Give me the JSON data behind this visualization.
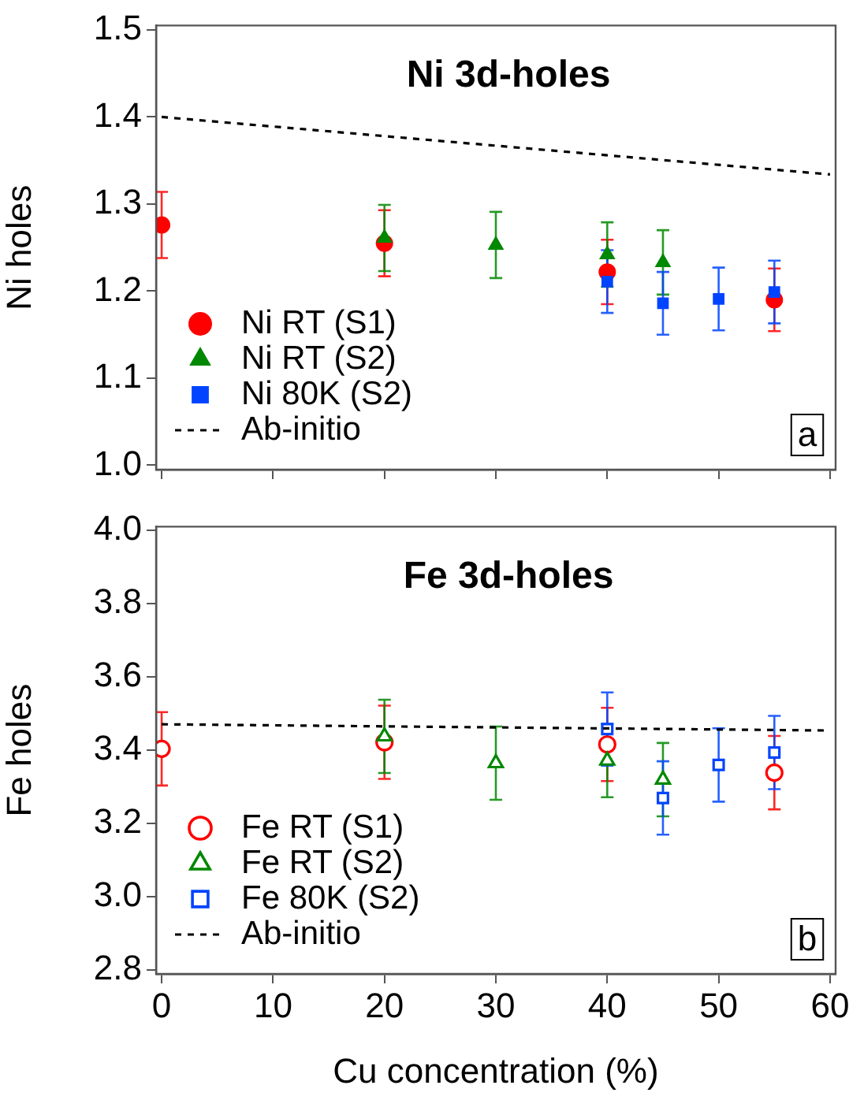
{
  "chart_data": [
    {
      "type": "scatter",
      "title": "Ni 3d-holes",
      "ylabel": "Ni holes",
      "xlim": [
        -0.5,
        60.5
      ],
      "xticks": [
        {
          "value": 0,
          "label": null
        },
        {
          "value": 10,
          "label": null
        },
        {
          "value": 20,
          "label": null
        },
        {
          "value": 30,
          "label": null
        },
        {
          "value": 40,
          "label": null
        },
        {
          "value": 50,
          "label": null
        },
        {
          "value": 60,
          "label": null
        }
      ],
      "ylim": [
        0.995,
        1.505
      ],
      "yticks": [
        {
          "value": 1,
          "label": "1.0"
        },
        1.1,
        1.2,
        1.3,
        1.4,
        1.5
      ],
      "tick_labels": "y",
      "grid": false,
      "legend": "bottom left",
      "annotations": [
        "a"
      ],
      "series": [
        {
          "name": "Ni RT (S1)",
          "type": "scatter",
          "marker": "circle",
          "color": "#ff0000",
          "x": [
            0,
            20,
            40,
            55
          ],
          "values": [
            1.276,
            1.255,
            1.222,
            1.19
          ],
          "errors": [
            0.038,
            0.038,
            0.037,
            0.036
          ]
        },
        {
          "name": "Ni RT (S2)",
          "type": "scatter",
          "marker": "triangle",
          "color": "#008800",
          "x": [
            20,
            30,
            40,
            45
          ],
          "values": [
            1.261,
            1.253,
            1.242,
            1.233
          ],
          "errors": [
            0.038,
            0.038,
            0.037,
            0.037
          ]
        },
        {
          "name": "Ni 80K (S2)",
          "type": "scatter",
          "marker": "square",
          "color": "#0044ff",
          "x": [
            40,
            45,
            50,
            55
          ],
          "values": [
            1.211,
            1.186,
            1.191,
            1.199
          ],
          "errors": [
            0.036,
            0.036,
            0.036,
            0.036
          ]
        },
        {
          "name": "Ab-initio",
          "type": "line",
          "marker": "none",
          "line_style": "dashed",
          "color": "#000000",
          "x": [
            0,
            60
          ],
          "values": [
            1.4,
            1.334
          ]
        }
      ]
    },
    {
      "type": "scatter",
      "title": "Fe 3d-holes",
      "xlabel": "Cu concentration (%)",
      "ylabel": "Fe holes",
      "xlim": [
        -0.5,
        60.5
      ],
      "xticks": [
        0,
        10,
        20,
        30,
        40,
        50,
        60
      ],
      "ylim": [
        2.79,
        4.01
      ],
      "yticks": [
        2.8,
        {
          "value": 3,
          "label": "3.0"
        },
        3.2,
        3.4,
        3.6,
        3.8,
        {
          "value": 4,
          "label": "4.0"
        }
      ],
      "grid": false,
      "legend": "bottom left",
      "annotations": [
        "b"
      ],
      "series": [
        {
          "name": "Fe RT (S1)",
          "type": "scatter",
          "marker": "circle",
          "color": "#ff0000",
          "x": [
            0,
            20,
            40,
            55
          ],
          "values": [
            3.404,
            3.422,
            3.416,
            3.339
          ],
          "errors": [
            0.1,
            0.1,
            0.1,
            0.1
          ]
        },
        {
          "name": "Fe RT (S2)",
          "type": "scatter",
          "marker": "triangle",
          "color": "#008800",
          "x": [
            20,
            30,
            40,
            45
          ],
          "values": [
            3.438,
            3.365,
            3.372,
            3.32
          ],
          "errors": [
            0.1,
            0.1,
            0.1,
            0.1
          ]
        },
        {
          "name": "Fe 80K (S2)",
          "type": "scatter",
          "marker": "square",
          "color": "#0044ff",
          "x": [
            40,
            45,
            50,
            55
          ],
          "values": [
            3.458,
            3.27,
            3.36,
            3.394
          ],
          "errors": [
            0.1,
            0.1,
            0.1,
            0.1
          ]
        },
        {
          "name": "Ab-initio",
          "type": "line",
          "marker": "none",
          "line_style": "dashed",
          "color": "#000000",
          "x": [
            0,
            60
          ],
          "values": [
            3.471,
            3.454
          ]
        }
      ]
    }
  ]
}
